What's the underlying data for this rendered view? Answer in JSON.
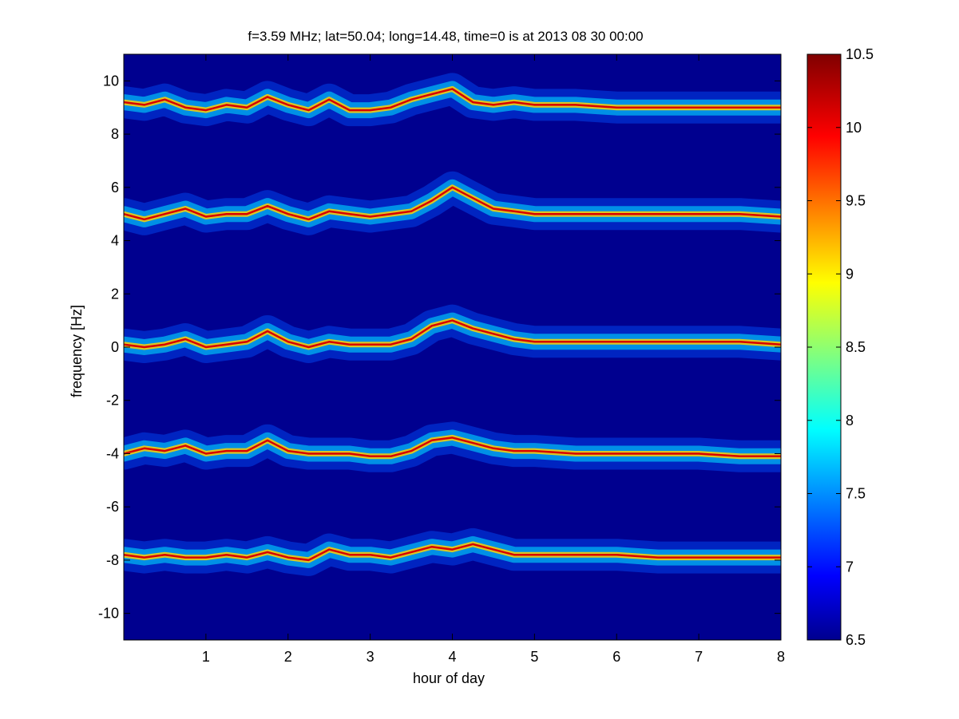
{
  "chart_data": {
    "type": "heatmap",
    "title": "f=3.59 MHz;  lat=50.04; long=14.48, time=0 is at 2013 08 30 00:00",
    "xlabel": "hour of day",
    "ylabel": "frequency [Hz]",
    "xlim": [
      0,
      8
    ],
    "ylim": [
      -11,
      11
    ],
    "xticks": [
      1,
      2,
      3,
      4,
      5,
      6,
      7,
      8
    ],
    "yticks": [
      -10,
      -8,
      -6,
      -4,
      -2,
      0,
      2,
      4,
      6,
      8,
      10
    ],
    "colorbar": {
      "range": [
        6.5,
        10.5
      ],
      "ticks": [
        "6.5",
        "7",
        "7.5",
        "8",
        "8.5",
        "9",
        "9.5",
        "10",
        "10.5"
      ],
      "colormap": "jet"
    },
    "traces": [
      {
        "hours": [
          0,
          0.25,
          0.5,
          0.75,
          1.0,
          1.25,
          1.5,
          1.75,
          2.0,
          2.25,
          2.5,
          2.75,
          3.0,
          3.25,
          3.5,
          3.75,
          4.0,
          4.25,
          4.5,
          4.75,
          5.0,
          5.5,
          6.0,
          6.5,
          7.0,
          7.5,
          8.0
        ],
        "freq_hz": [
          9.2,
          9.1,
          9.3,
          9.0,
          8.9,
          9.1,
          9.0,
          9.4,
          9.1,
          8.9,
          9.3,
          8.9,
          8.9,
          9.0,
          9.3,
          9.5,
          9.7,
          9.2,
          9.1,
          9.2,
          9.1,
          9.1,
          9.0,
          9.0,
          9.0,
          9.0,
          9.0
        ]
      },
      {
        "hours": [
          0,
          0.25,
          0.5,
          0.75,
          1.0,
          1.25,
          1.5,
          1.75,
          2.0,
          2.25,
          2.5,
          2.75,
          3.0,
          3.25,
          3.5,
          3.75,
          4.0,
          4.25,
          4.5,
          4.75,
          5.0,
          5.5,
          6.0,
          6.5,
          7.0,
          7.5,
          8.0
        ],
        "freq_hz": [
          5.0,
          4.8,
          5.0,
          5.2,
          4.9,
          5.0,
          5.0,
          5.3,
          5.0,
          4.8,
          5.1,
          5.0,
          4.9,
          5.0,
          5.1,
          5.5,
          6.0,
          5.6,
          5.2,
          5.1,
          5.0,
          5.0,
          5.0,
          5.0,
          5.0,
          5.0,
          4.9
        ]
      },
      {
        "hours": [
          0,
          0.25,
          0.5,
          0.75,
          1.0,
          1.25,
          1.5,
          1.75,
          2.0,
          2.25,
          2.5,
          2.75,
          3.0,
          3.25,
          3.5,
          3.75,
          4.0,
          4.25,
          4.5,
          4.75,
          5.0,
          5.5,
          6.0,
          6.5,
          7.0,
          7.5,
          8.0
        ],
        "freq_hz": [
          0.1,
          0.0,
          0.1,
          0.3,
          0.0,
          0.1,
          0.2,
          0.6,
          0.2,
          0.0,
          0.2,
          0.1,
          0.1,
          0.1,
          0.3,
          0.8,
          1.0,
          0.7,
          0.5,
          0.3,
          0.2,
          0.2,
          0.2,
          0.2,
          0.2,
          0.2,
          0.1
        ]
      },
      {
        "hours": [
          0,
          0.25,
          0.5,
          0.75,
          1.0,
          1.25,
          1.5,
          1.75,
          2.0,
          2.25,
          2.5,
          2.75,
          3.0,
          3.25,
          3.5,
          3.75,
          4.0,
          4.25,
          4.5,
          4.75,
          5.0,
          5.5,
          6.0,
          6.5,
          7.0,
          7.5,
          8.0
        ],
        "freq_hz": [
          -4.0,
          -3.8,
          -3.9,
          -3.7,
          -4.0,
          -3.9,
          -3.9,
          -3.5,
          -3.9,
          -4.0,
          -4.0,
          -4.0,
          -4.1,
          -4.1,
          -3.9,
          -3.5,
          -3.4,
          -3.6,
          -3.8,
          -3.9,
          -3.9,
          -4.0,
          -4.0,
          -4.0,
          -4.0,
          -4.1,
          -4.1
        ]
      },
      {
        "hours": [
          0,
          0.25,
          0.5,
          0.75,
          1.0,
          1.25,
          1.5,
          1.75,
          2.0,
          2.25,
          2.5,
          2.75,
          3.0,
          3.25,
          3.5,
          3.75,
          4.0,
          4.25,
          4.5,
          4.75,
          5.0,
          5.5,
          6.0,
          6.5,
          7.0,
          7.5,
          8.0
        ],
        "freq_hz": [
          -7.8,
          -7.9,
          -7.8,
          -7.9,
          -7.9,
          -7.8,
          -7.9,
          -7.7,
          -7.9,
          -8.0,
          -7.6,
          -7.8,
          -7.8,
          -7.9,
          -7.7,
          -7.5,
          -7.6,
          -7.4,
          -7.6,
          -7.8,
          -7.8,
          -7.8,
          -7.8,
          -7.9,
          -7.9,
          -7.9,
          -7.9
        ]
      }
    ],
    "grid": false
  }
}
